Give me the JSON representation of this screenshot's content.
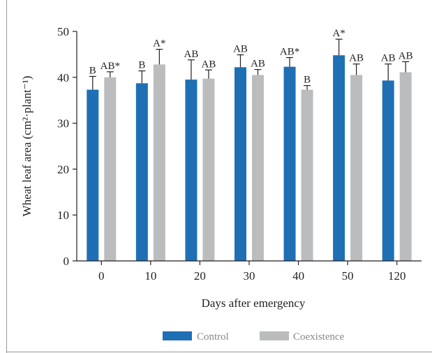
{
  "chart_data": {
    "type": "bar",
    "xlabel": "Days after emergency",
    "ylabel": "Wheat leaf area (cm²·plant⁻¹)",
    "ylim": [
      0,
      50
    ],
    "yticks": [
      "0",
      "10",
      "20",
      "30",
      "40",
      "50"
    ],
    "categories": [
      "0",
      "10",
      "20",
      "30",
      "40",
      "50",
      "120"
    ],
    "series": [
      {
        "name": "Control",
        "color": "#1f6fb5",
        "values": [
          37.3,
          38.7,
          39.5,
          42.2,
          42.3,
          44.8,
          39.3
        ],
        "errors": [
          2.9,
          2.7,
          4.3,
          2.7,
          2.0,
          3.5,
          3.6
        ],
        "labels": [
          "B",
          "B",
          "AB",
          "AB",
          "AB*",
          "A*",
          "AB"
        ]
      },
      {
        "name": "Coexistence",
        "color": "#bbbcbe",
        "values": [
          40.0,
          42.8,
          39.7,
          40.5,
          37.3,
          40.5,
          41.1
        ],
        "errors": [
          1.2,
          3.3,
          1.9,
          1.2,
          0.9,
          2.4,
          2.3
        ],
        "labels": [
          "AB*",
          "A*",
          "AB",
          "AB",
          "B",
          "AB",
          "AB"
        ]
      }
    ],
    "legend_position": "bottom-center",
    "grid": false
  }
}
